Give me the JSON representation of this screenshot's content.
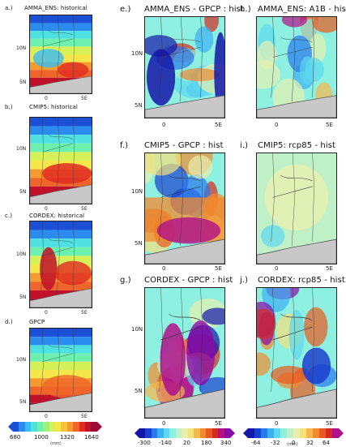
{
  "panels": [
    {
      "id": "a",
      "label": "a.)",
      "title": "AMMA_ENS: historical",
      "scheme": "abs",
      "lat_ticks": [
        "10N",
        "5N"
      ],
      "lon_ticks": [
        "0",
        "5E"
      ]
    },
    {
      "id": "b",
      "label": "b.)",
      "title": "CMIP5: historical",
      "scheme": "abs",
      "lat_ticks": [
        "10N",
        "5N"
      ],
      "lon_ticks": [
        "0",
        "5E"
      ]
    },
    {
      "id": "c",
      "label": "c.)",
      "title": "CORDEX: historical",
      "scheme": "abs",
      "lat_ticks": [
        "10N",
        "5N"
      ],
      "lon_ticks": [
        "0",
        "5E"
      ]
    },
    {
      "id": "d",
      "label": "d.)",
      "title": "GPCP",
      "scheme": "abs",
      "lat_ticks": [
        "10N",
        "5N"
      ],
      "lon_ticks": [
        "0",
        "5E"
      ]
    },
    {
      "id": "e",
      "label": "e.)",
      "title": "AMMA_ENS - GPCP : hist",
      "scheme": "bias",
      "lat_ticks": [
        "10N",
        "5N"
      ],
      "lon_ticks": [
        "0",
        "5E"
      ]
    },
    {
      "id": "f",
      "label": "f.)",
      "title": "CMIP5 - GPCP : hist",
      "scheme": "bias",
      "lat_ticks": [
        "10N",
        "5N"
      ],
      "lon_ticks": [
        "0",
        "5E"
      ]
    },
    {
      "id": "g",
      "label": "g.)",
      "title": "CORDEX - GPCP : hist",
      "scheme": "bias",
      "lat_ticks": [
        "10N",
        "5N"
      ],
      "lon_ticks": [
        "0",
        "5E"
      ]
    },
    {
      "id": "h",
      "label": "h.)",
      "title": "AMMA_ENS: A1B - hist",
      "scheme": "change",
      "lat_ticks": [
        "10N",
        "5N"
      ],
      "lon_ticks": [
        "0",
        "5E"
      ]
    },
    {
      "id": "i",
      "label": "i.)",
      "title": "CMIP5: rcp85 - hist",
      "scheme": "change",
      "lat_ticks": [
        "10N",
        "5N"
      ],
      "lon_ticks": [
        "0",
        "5E"
      ]
    },
    {
      "id": "j",
      "label": "j.)",
      "title": "CORDEX: rcp85 - hist",
      "scheme": "change",
      "lat_ticks": [
        "10N",
        "5N"
      ],
      "lon_ticks": [
        "0",
        "5E"
      ]
    }
  ],
  "colorbars": {
    "abs": {
      "labels": [
        "680",
        "1000",
        "1320",
        "1640"
      ],
      "unit": "(mm)",
      "colors": [
        "#1a4fd6",
        "#2b8cf0",
        "#38bdf5",
        "#4fe0e0",
        "#6ef0b0",
        "#9df07a",
        "#d6f05a",
        "#f5e74a",
        "#f8c23a",
        "#f59a2e",
        "#f0662a",
        "#e02a22",
        "#c0102a",
        "#a00a38"
      ]
    },
    "bias": {
      "labels": [
        "-300",
        "-140",
        "20",
        "180",
        "340"
      ],
      "unit": "(mm)",
      "colors": [
        "#1515a8",
        "#1a40d0",
        "#2a78ec",
        "#3cb0f4",
        "#5cd8f0",
        "#8ef0e0",
        "#c0f0c8",
        "#e8f0b0",
        "#f5e07a",
        "#f6b84a",
        "#f28a2e",
        "#e85a20",
        "#d52a20",
        "#b0108a",
        "#8a0aa8"
      ]
    },
    "change": {
      "labels": [
        "-64",
        "-32",
        "0",
        "32",
        "64"
      ],
      "unit": "(mm)",
      "colors": [
        "#1515a8",
        "#1a40d0",
        "#2a78ec",
        "#3cb0f4",
        "#5cd8f0",
        "#8ef0e0",
        "#c0f0c8",
        "#e8f0b0",
        "#f5e07a",
        "#f6b84a",
        "#f28a2e",
        "#e85a20",
        "#d52a20",
        "#b0108a"
      ]
    }
  }
}
